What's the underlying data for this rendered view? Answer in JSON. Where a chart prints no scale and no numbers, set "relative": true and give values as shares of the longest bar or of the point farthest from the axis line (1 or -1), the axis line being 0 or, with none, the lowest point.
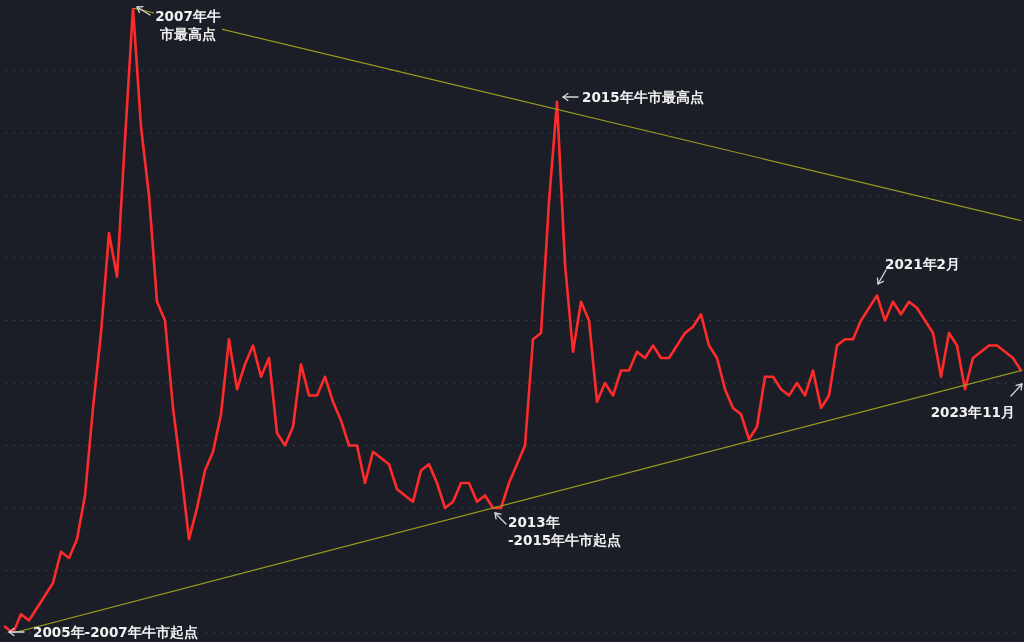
{
  "chart_data": {
    "type": "line",
    "relative": true,
    "grid": "y",
    "categories": [
      null,
      null,
      null,
      null,
      null,
      null,
      null,
      null,
      null,
      null,
      null,
      null,
      null,
      null,
      null,
      null,
      null,
      null,
      null,
      null,
      null,
      null,
      null,
      null,
      null,
      null,
      null,
      null,
      null,
      null,
      null,
      null,
      null,
      null,
      null,
      null,
      null,
      null,
      null,
      null,
      null,
      null,
      null,
      null,
      null,
      null,
      null,
      null,
      null,
      null,
      null,
      null,
      null,
      null,
      null,
      null,
      null,
      null,
      null,
      null,
      null,
      null,
      null,
      null,
      null,
      null,
      null,
      null,
      null,
      null,
      null,
      null,
      null,
      null,
      null,
      null,
      null,
      null,
      null,
      null,
      null,
      null,
      null,
      null,
      null,
      null,
      null,
      null,
      null,
      null,
      null,
      null,
      null,
      null,
      null,
      null,
      null,
      null,
      null,
      null,
      null,
      null,
      null,
      null,
      null,
      null,
      null,
      null,
      null,
      null,
      null,
      null,
      null,
      null,
      null,
      null,
      null,
      null,
      null,
      null,
      null,
      null,
      null,
      null,
      null,
      null,
      null,
      null
    ],
    "series": [
      {
        "color": "#ff2b2b",
        "values": [
          0.01,
          0,
          0.03,
          0.02,
          0.04,
          0.06,
          0.08,
          0.13,
          0.12,
          0.15,
          0.22,
          0.36,
          0.48,
          0.64,
          0.57,
          0.79,
          1,
          0.81,
          0.7,
          0.53,
          0.5,
          0.36,
          0.26,
          0.15,
          0.2,
          0.26,
          0.29,
          0.35,
          0.47,
          0.39,
          0.43,
          0.46,
          0.41,
          0.44,
          0.32,
          0.3,
          0.33,
          0.43,
          0.38,
          0.38,
          0.41,
          0.37,
          0.34,
          0.3,
          0.3,
          0.24,
          0.29,
          0.28,
          0.27,
          0.23,
          0.22,
          0.21,
          0.26,
          0.27,
          0.24,
          0.2,
          0.21,
          0.24,
          0.24,
          0.21,
          0.22,
          0.2,
          0.2,
          0.24,
          0.27,
          0.3,
          0.47,
          0.48,
          0.69,
          0.85,
          0.59,
          0.45,
          0.53,
          0.5,
          0.37,
          0.4,
          0.38,
          0.42,
          0.42,
          0.45,
          0.44,
          0.46,
          0.44,
          0.44,
          0.46,
          0.48,
          0.49,
          0.51,
          0.46,
          0.44,
          0.39,
          0.36,
          0.35,
          0.31,
          0.33,
          0.41,
          0.41,
          0.39,
          0.38,
          0.4,
          0.38,
          0.42,
          0.36,
          0.38,
          0.46,
          0.47,
          0.47,
          0.5,
          0.52,
          0.54,
          0.5,
          0.53,
          0.51,
          0.53,
          0.52,
          0.5,
          0.48,
          0.41,
          0.48,
          0.46,
          0.39,
          0.44,
          0.45,
          0.46,
          0.46,
          0.45,
          0.44,
          0.42
        ]
      },
      {
        "color": "#9b9b1e",
        "values": [
          null,
          null,
          null,
          null,
          null,
          null,
          null,
          null,
          null,
          null,
          null,
          null,
          null,
          null,
          null,
          null,
          1,
          null,
          null,
          null,
          null,
          null,
          null,
          null,
          null,
          null,
          null,
          null,
          null,
          null,
          null,
          null,
          null,
          null,
          null,
          null,
          null,
          null,
          null,
          null,
          null,
          null,
          null,
          null,
          null,
          null,
          null,
          null,
          null,
          null,
          null,
          null,
          null,
          null,
          null,
          null,
          null,
          null,
          null,
          null,
          null,
          null,
          null,
          null,
          null,
          null,
          null,
          null,
          null,
          null,
          null,
          null,
          null,
          null,
          null,
          null,
          null,
          null,
          null,
          null,
          null,
          null,
          null,
          null,
          null,
          null,
          null,
          null,
          null,
          null,
          null,
          null,
          null,
          null,
          null,
          null,
          null,
          null,
          null,
          null,
          null,
          null,
          null,
          null,
          null,
          null,
          null,
          null,
          null,
          null,
          null,
          null,
          null,
          null,
          null,
          null,
          null,
          null,
          null,
          null,
          null,
          null,
          null,
          null,
          null,
          null,
          null,
          0.66
        ]
      },
      {
        "color": "#9b9b1e",
        "values": [
          null,
          0,
          null,
          null,
          null,
          null,
          null,
          null,
          null,
          null,
          null,
          null,
          null,
          null,
          null,
          null,
          null,
          null,
          null,
          null,
          null,
          null,
          null,
          null,
          null,
          null,
          null,
          null,
          null,
          null,
          null,
          null,
          null,
          null,
          null,
          null,
          null,
          null,
          null,
          null,
          null,
          null,
          null,
          null,
          null,
          null,
          null,
          null,
          null,
          null,
          null,
          null,
          null,
          null,
          null,
          null,
          null,
          null,
          null,
          null,
          null,
          null,
          null,
          null,
          null,
          null,
          null,
          null,
          null,
          null,
          null,
          null,
          null,
          null,
          null,
          null,
          null,
          null,
          null,
          null,
          null,
          null,
          null,
          null,
          null,
          null,
          null,
          null,
          null,
          null,
          null,
          null,
          null,
          null,
          null,
          null,
          null,
          null,
          null,
          null,
          null,
          null,
          null,
          null,
          null,
          null,
          null,
          null,
          null,
          null,
          null,
          null,
          null,
          null,
          null,
          null,
          null,
          null,
          null,
          null,
          null,
          null,
          null,
          null,
          null,
          null,
          null,
          0.42
        ]
      }
    ],
    "annotations": [
      "2005年-2007年牛市起点",
      "2007年牛市最高点",
      "2015年牛市最高点",
      "2013年-2015年牛市起点",
      "2021年2月",
      "2023年11月"
    ]
  }
}
